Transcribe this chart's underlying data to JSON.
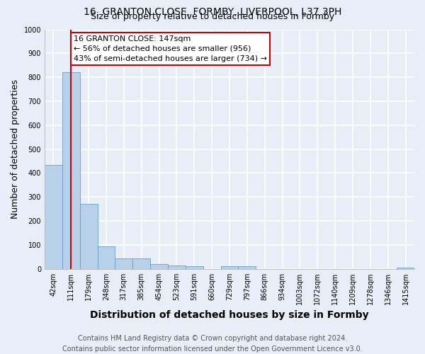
{
  "title": "16, GRANTON CLOSE, FORMBY, LIVERPOOL, L37 3PH",
  "subtitle": "Size of property relative to detached houses in Formby",
  "xlabel": "Distribution of detached houses by size in Formby",
  "ylabel": "Number of detached properties",
  "bin_labels": [
    "42sqm",
    "111sqm",
    "179sqm",
    "248sqm",
    "317sqm",
    "385sqm",
    "454sqm",
    "523sqm",
    "591sqm",
    "660sqm",
    "729sqm",
    "797sqm",
    "866sqm",
    "934sqm",
    "1003sqm",
    "1072sqm",
    "1140sqm",
    "1209sqm",
    "1278sqm",
    "1346sqm",
    "1415sqm"
  ],
  "bar_values": [
    435,
    820,
    270,
    93,
    45,
    43,
    20,
    15,
    10,
    0,
    10,
    10,
    0,
    0,
    0,
    0,
    0,
    0,
    0,
    0,
    5
  ],
  "bar_color": "#b8d0ea",
  "bar_edge_color": "#6a9fc8",
  "property_bin_index": 1,
  "annotation_line1": "16 GRANTON CLOSE: 147sqm",
  "annotation_line2": "← 56% of detached houses are smaller (956)",
  "annotation_line3": "43% of semi-detached houses are larger (734) →",
  "annotation_box_color": "#ffffff",
  "annotation_box_edge": "#cc0000",
  "red_line_color": "#cc0000",
  "ylim": [
    0,
    1000
  ],
  "yticks": [
    0,
    100,
    200,
    300,
    400,
    500,
    600,
    700,
    800,
    900,
    1000
  ],
  "footer_line1": "Contains HM Land Registry data © Crown copyright and database right 2024.",
  "footer_line2": "Contains public sector information licensed under the Open Government Licence v3.0.",
  "bg_color": "#e8eef7",
  "plot_bg_color": "#e8eef7",
  "grid_color": "#ffffff",
  "title_fontsize": 10,
  "subtitle_fontsize": 9,
  "axis_label_fontsize": 9,
  "tick_fontsize": 7,
  "footer_fontsize": 7,
  "annotation_fontsize": 8
}
